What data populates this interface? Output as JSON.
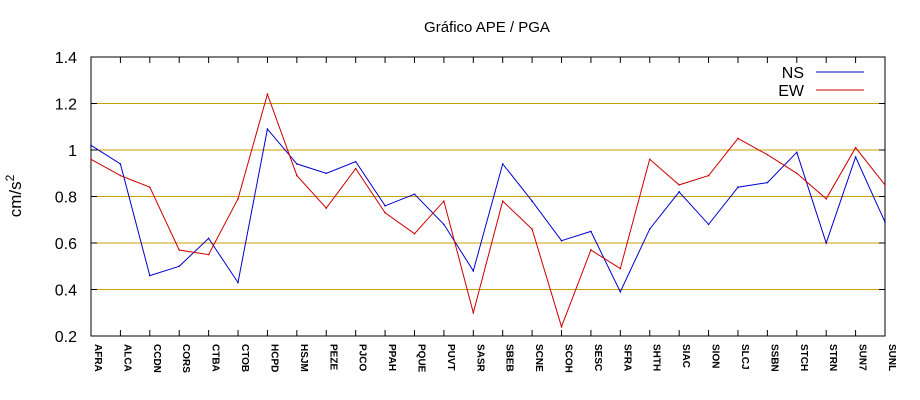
{
  "chart_data": {
    "type": "line",
    "title": "Gráfico  APE / PGA",
    "xlabel": "",
    "ylabel_base": "cm/s",
    "ylabel_sup": "2",
    "ylim": [
      0.2,
      1.4
    ],
    "yticks": [
      0.2,
      0.4,
      0.6,
      0.8,
      1,
      1.2,
      1.4
    ],
    "ytick_labels": [
      "0.2",
      "0.4",
      "0.6",
      "0.8",
      "1",
      "1.2",
      "1.4"
    ],
    "grid": "horizontal",
    "grid_color": "#c8a000",
    "legend_position": "top-right",
    "categories": [
      "AFRA",
      "ALCA",
      "CCDN",
      "CORS",
      "CTBA",
      "CTOB",
      "HCPD",
      "HSJM",
      "PEZE",
      "PJCO",
      "PPAH",
      "PQUE",
      "PUVT",
      "SASR",
      "SBEB",
      "SCNE",
      "SCOH",
      "SESC",
      "SFRA",
      "SHTH",
      "SIAC",
      "SION",
      "SLCJ",
      "SSBN",
      "STCH",
      "STRN",
      "SUN7",
      "SUNL"
    ],
    "series": [
      {
        "name": "NS",
        "color": "#0000cc",
        "values": [
          1.02,
          0.94,
          0.46,
          0.5,
          0.62,
          0.43,
          1.09,
          0.94,
          0.9,
          0.95,
          0.76,
          0.81,
          0.68,
          0.48,
          0.94,
          0.78,
          0.61,
          0.65,
          0.39,
          0.66,
          0.82,
          0.68,
          0.84,
          0.86,
          0.99,
          0.6,
          0.97,
          0.69
        ]
      },
      {
        "name": "EW",
        "color": "#cc0000",
        "values": [
          0.96,
          0.89,
          0.84,
          0.57,
          0.55,
          0.79,
          1.24,
          0.89,
          0.75,
          0.92,
          0.73,
          0.64,
          0.78,
          0.3,
          0.78,
          0.66,
          0.24,
          0.57,
          0.49,
          0.96,
          0.85,
          0.89,
          1.05,
          0.98,
          0.9,
          0.79,
          1.01,
          0.85
        ]
      }
    ]
  }
}
